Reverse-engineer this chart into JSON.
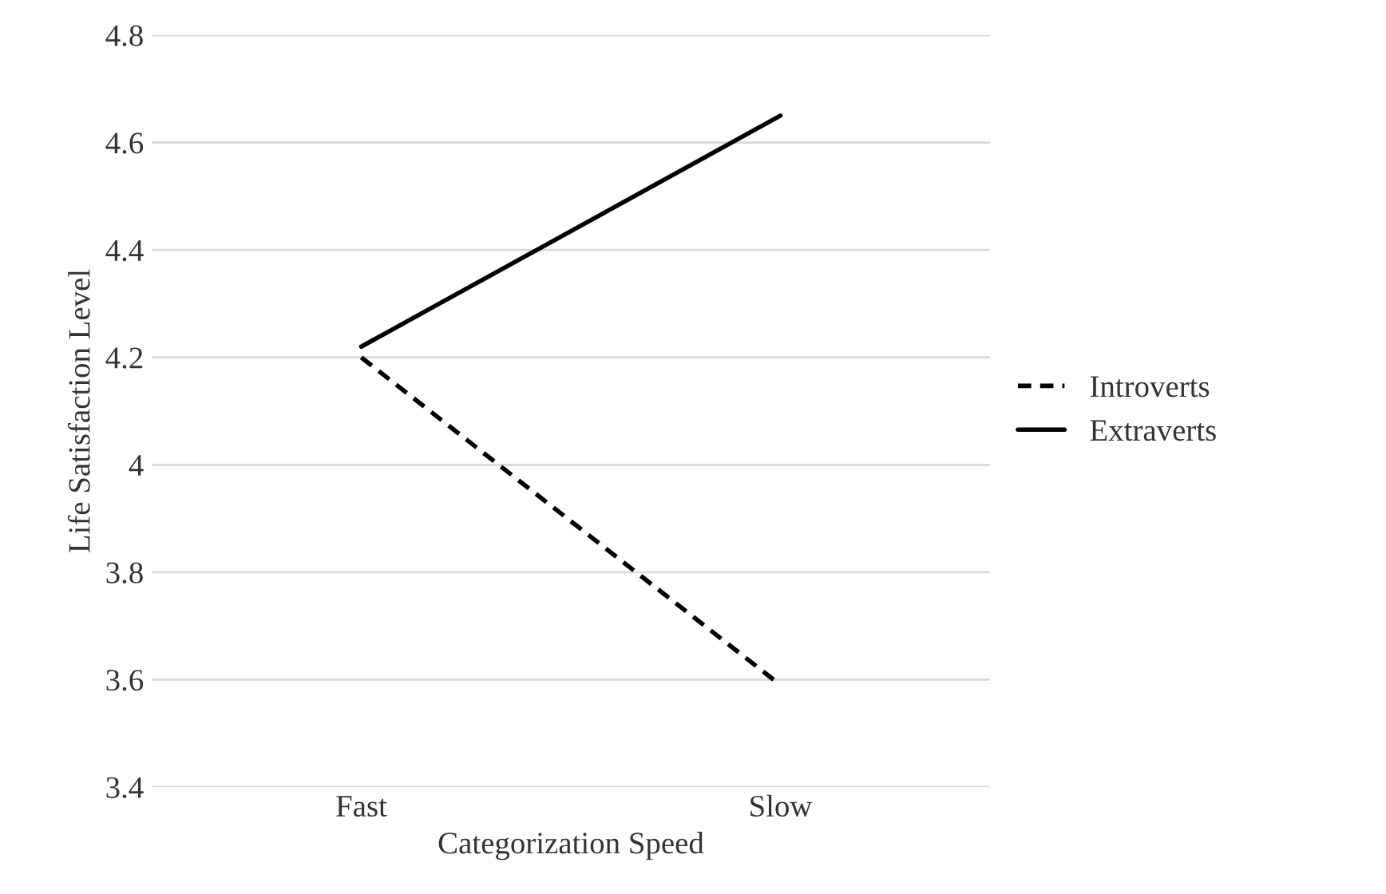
{
  "chart_data": {
    "type": "line",
    "xlabel": "Categorization Speed",
    "ylabel": "Life Satisfaction Level",
    "categories": [
      "Fast",
      "Slow"
    ],
    "series": [
      {
        "name": "Introverts",
        "color": "#000000",
        "line_style": "dashed",
        "values": [
          4.2,
          3.59
        ]
      },
      {
        "name": "Extraverts",
        "color": "#000000",
        "line_style": "solid",
        "values": [
          4.22,
          4.65
        ]
      }
    ],
    "ylim": [
      3.4,
      4.8
    ],
    "yticks": [
      3.4,
      3.6,
      3.8,
      4,
      4.2,
      4.4,
      4.6,
      4.8
    ],
    "grid": "y",
    "legend": "right",
    "marker": "none"
  }
}
